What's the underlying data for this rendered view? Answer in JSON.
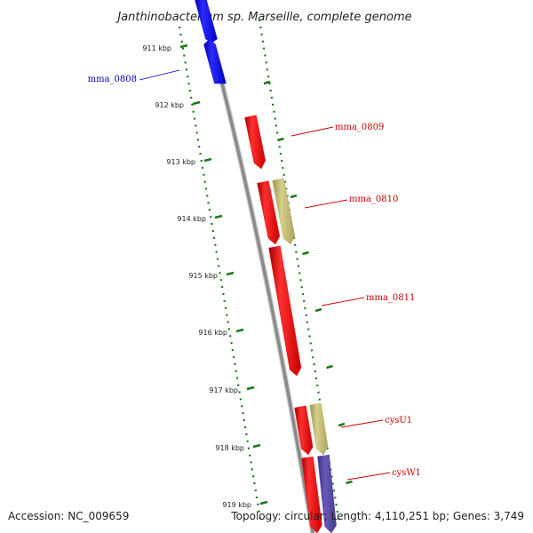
{
  "title": "Janthinobacterium sp. Marseille, complete genome",
  "accession": "Accession: NC_009659",
  "summary": "Topology: circular; Length: 4,110,251 bp; Genes: 3,749",
  "ticks": [
    {
      "label": "911 kbp"
    },
    {
      "label": "912 kbp"
    },
    {
      "label": "913 kbp"
    },
    {
      "label": "914 kbp"
    },
    {
      "label": "915 kbp"
    },
    {
      "label": "916 kbp"
    },
    {
      "label": "917 kbp"
    },
    {
      "label": "918 kbp"
    },
    {
      "label": "919 kbp"
    }
  ],
  "genes": [
    {
      "name": "mma_0808",
      "strand": "reverse",
      "color": "#1010e8"
    },
    {
      "name": "mma_0809",
      "strand": "forward",
      "color": "#ee1111"
    },
    {
      "name": "mma_0810",
      "strand": "forward",
      "color": "#ee1111"
    },
    {
      "name": "mma_0811",
      "strand": "forward",
      "color": "#ee1111"
    },
    {
      "name": "cysU1",
      "strand": "forward",
      "color": "#ee1111"
    },
    {
      "name": "cysW1",
      "strand": "forward",
      "color": "#ee1111"
    }
  ],
  "colors": {
    "backbone": "#8a8a8a",
    "tick": "#1a7a1a",
    "cog_tan": "#bdb76b",
    "cog_purple": "#5a4aa0",
    "label_forward": "#cc0000",
    "label_reverse": "#0000bb"
  }
}
